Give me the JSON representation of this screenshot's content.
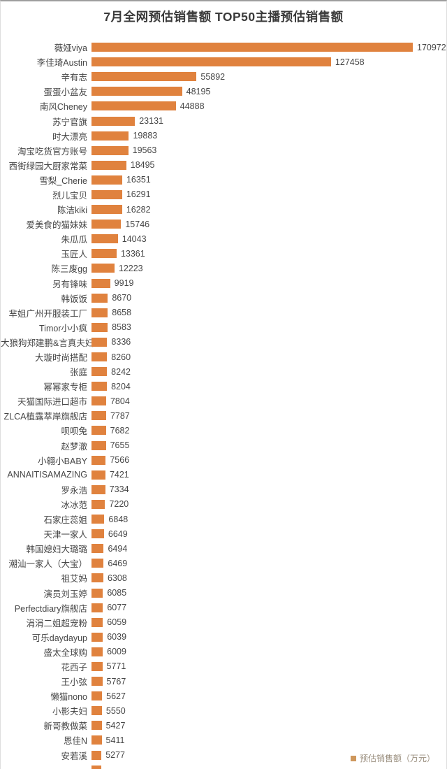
{
  "chart_data": {
    "type": "bar",
    "orientation": "horizontal",
    "title": "7月全网预估销售额 TOP50主播预估销售额",
    "legend_label": "预估销售额（万元）",
    "bar_color": "#E0823E",
    "xlim": [
      0,
      178000
    ],
    "grid": false,
    "legend_position": "bottom-right",
    "categories": [
      "薇娅viya",
      "李佳琦Austin",
      "辛有志",
      "蛋蛋小盆友",
      "南风Cheney",
      "苏宁官旗",
      "时大漂亮",
      "淘宝吃货官方账号",
      "西街绿园大厨家常菜",
      "雪梨_Cherie",
      "烈儿宝贝",
      "陈洁kiki",
      "爱美食的猫妹妹",
      "朱瓜瓜",
      "玉匠人",
      "陈三废gg",
      "另有锋味",
      "韩饭饭",
      "芈姐广州开服装工厂",
      "Timor小小疯",
      "大狼狗郑建鹏&言真夫妇",
      "大璇时尚搭配",
      "张庭",
      "幂幂家专柜",
      "天猫国际进口超市",
      "ZLCA植露萃岸旗舰店",
      "呗呗兔",
      "赵梦澈",
      "小翱小BABY",
      "ANNAITISAMAZING",
      "罗永浩",
      "冰冰范",
      "石家庄蕊姐",
      "天津一家人",
      "韩国媳妇大璐璐",
      "潮汕一家人（大宝）",
      "祖艾妈",
      "演员刘玉婷",
      "Perfectdiary旗舰店",
      "涓涓二姐超宠粉",
      "可乐daydayup",
      "盛太全球购",
      "花西子",
      "王小弦",
      "懒猫nono",
      "小影夫妇",
      "新哥教做菜",
      "恩佳N",
      "安若溪"
    ],
    "values": [
      170972,
      127458,
      55892,
      48195,
      44888,
      23131,
      19883,
      19563,
      18495,
      16351,
      16291,
      16282,
      15746,
      14043,
      13361,
      12223,
      9919,
      8670,
      8658,
      8583,
      8336,
      8260,
      8242,
      8204,
      7804,
      7787,
      7682,
      7655,
      7566,
      7421,
      7334,
      7220,
      6848,
      6649,
      6494,
      6469,
      6308,
      6085,
      6077,
      6059,
      6039,
      6009,
      5771,
      5767,
      5627,
      5550,
      5427,
      5411,
      5277
    ],
    "clipped_partial_row_at_bottom": true
  }
}
